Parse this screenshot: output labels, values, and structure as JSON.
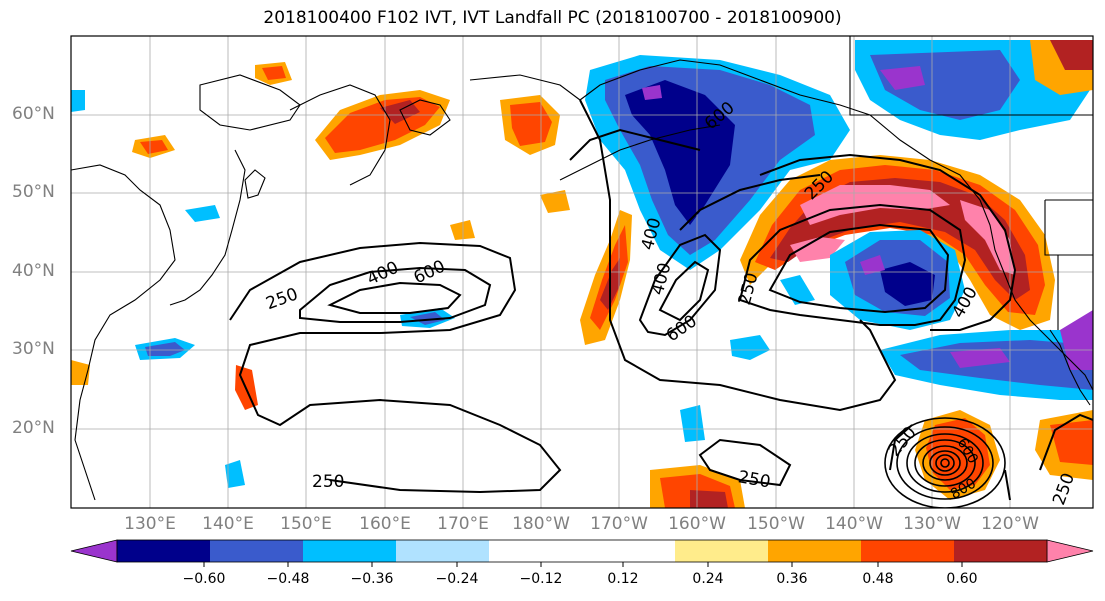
{
  "title": "2018100400 F102 IVT, IVT Landfall PC (2018100700 - 2018100900)",
  "lat_labels": [
    "60°N",
    "50°N",
    "40°N",
    "30°N",
    "20°N"
  ],
  "lon_labels": [
    "130°E",
    "140°E",
    "150°E",
    "160°E",
    "170°E",
    "180°W",
    "170°W",
    "160°W",
    "150°W",
    "140°W",
    "130°W",
    "120°W"
  ],
  "contour_labels": [
    "250",
    "400",
    "600",
    "400",
    "600",
    "400",
    "600",
    "250",
    "250",
    "250",
    "250",
    "250",
    "600",
    "800",
    "400",
    "250"
  ],
  "colorbar": {
    "colors": [
      "#9a34cd",
      "#00008b",
      "#3a5bcc",
      "#00bfff",
      "#b0e2ff",
      "#ffffff",
      "#ffffff",
      "#ffec8b",
      "#ffa500",
      "#ff4500",
      "#b22222",
      "#ff82ab"
    ],
    "labels": [
      "−0.60",
      "−0.48",
      "−0.36",
      "−0.24",
      "−0.12",
      "0.12",
      "0.24",
      "0.36",
      "0.48",
      "0.60"
    ]
  },
  "palette": {
    "purple": "#9a34cd",
    "navy": "#00008b",
    "royal": "#3a5bcc",
    "sky": "#00bfff",
    "pale_blue": "#b0e2ff",
    "yellow": "#ffec8b",
    "orange": "#ffa500",
    "red_orange": "#ff4500",
    "firebrick": "#b22222",
    "pink": "#ff82ab"
  }
}
